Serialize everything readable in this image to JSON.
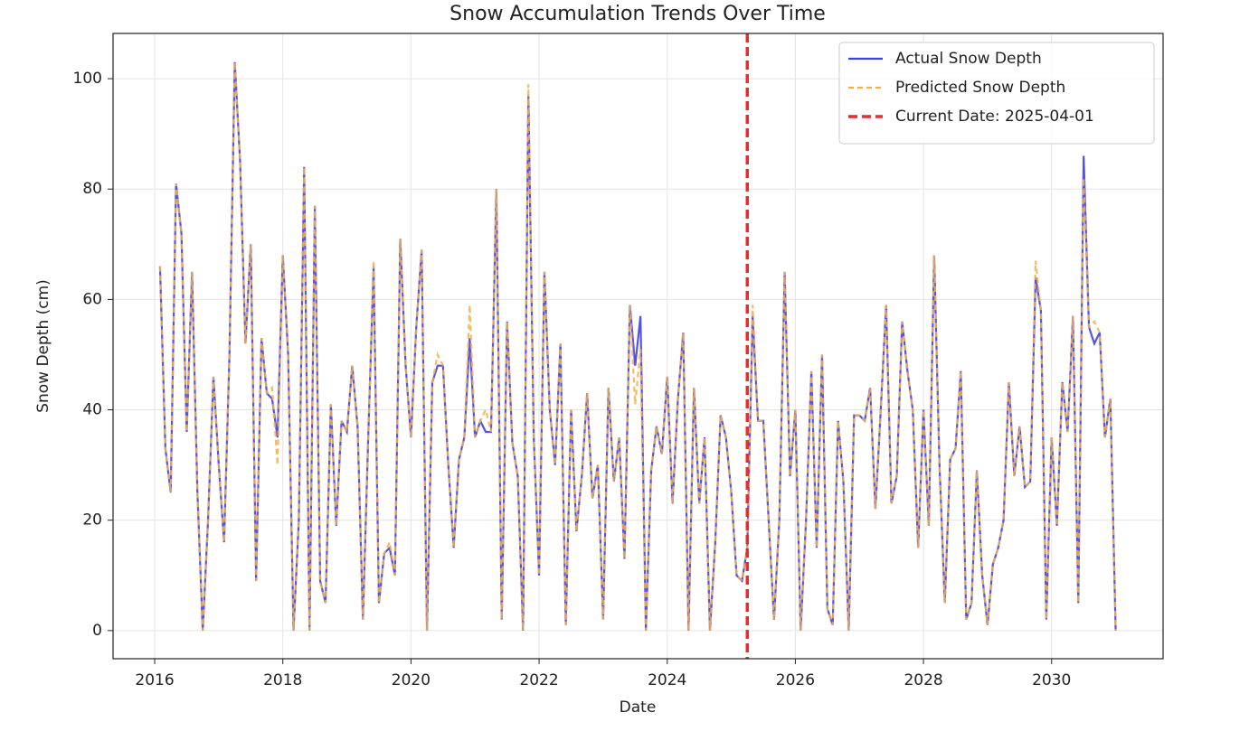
{
  "chart_data": {
    "type": "line",
    "title": "Snow Accumulation Trends Over Time",
    "x_label": "Date",
    "y_label": "Snow Depth (cm)",
    "x": [
      2016.083,
      2016.167,
      2016.25,
      2016.333,
      2016.417,
      2016.5,
      2016.583,
      2016.667,
      2016.75,
      2016.833,
      2016.917,
      2017,
      2017.083,
      2017.167,
      2017.25,
      2017.333,
      2017.417,
      2017.5,
      2017.583,
      2017.667,
      2017.75,
      2017.833,
      2017.917,
      2018,
      2018.083,
      2018.167,
      2018.25,
      2018.333,
      2018.417,
      2018.5,
      2018.583,
      2018.667,
      2018.75,
      2018.833,
      2018.917,
      2019,
      2019.083,
      2019.167,
      2019.25,
      2019.333,
      2019.417,
      2019.5,
      2019.583,
      2019.667,
      2019.75,
      2019.833,
      2019.917,
      2020,
      2020.083,
      2020.167,
      2020.25,
      2020.333,
      2020.417,
      2020.5,
      2020.583,
      2020.667,
      2020.75,
      2020.833,
      2020.917,
      2021,
      2021.083,
      2021.167,
      2021.25,
      2021.333,
      2021.417,
      2021.5,
      2021.583,
      2021.667,
      2021.75,
      2021.833,
      2021.917,
      2022,
      2022.083,
      2022.167,
      2022.25,
      2022.333,
      2022.417,
      2022.5,
      2022.583,
      2022.667,
      2022.75,
      2022.833,
      2022.917,
      2023,
      2023.083,
      2023.167,
      2023.25,
      2023.333,
      2023.417,
      2023.5,
      2023.583,
      2023.667,
      2023.75,
      2023.833,
      2023.917,
      2024,
      2024.083,
      2024.167,
      2024.25,
      2024.333,
      2024.417,
      2024.5,
      2024.583,
      2024.667,
      2024.75,
      2024.833,
      2024.917,
      2025,
      2025.083,
      2025.167,
      2025.25,
      2025.333,
      2025.417,
      2025.5,
      2025.583,
      2025.667,
      2025.75,
      2025.833,
      2025.917,
      2026,
      2026.083,
      2026.167,
      2026.25,
      2026.333,
      2026.417,
      2026.5,
      2026.583,
      2026.667,
      2026.75,
      2026.833,
      2026.917,
      2027,
      2027.083,
      2027.167,
      2027.25,
      2027.333,
      2027.417,
      2027.5,
      2027.583,
      2027.667,
      2027.75,
      2027.833,
      2027.917,
      2028,
      2028.083,
      2028.167,
      2028.25,
      2028.333,
      2028.417,
      2028.5,
      2028.583,
      2028.667,
      2028.75,
      2028.833,
      2028.917,
      2029,
      2029.083,
      2029.167,
      2029.25,
      2029.333,
      2029.417,
      2029.5,
      2029.583,
      2029.667,
      2029.75,
      2029.833,
      2029.917,
      2030,
      2030.083,
      2030.167,
      2030.25,
      2030.333,
      2030.417,
      2030.5,
      2030.583,
      2030.667,
      2030.75,
      2030.833,
      2030.917,
      2031
    ],
    "series": [
      {
        "name": "Actual Snow Depth",
        "color": "#4040e8",
        "dash": false,
        "values": [
          66,
          33,
          25,
          81,
          72,
          36,
          65,
          25,
          0,
          20,
          46,
          30,
          16,
          50,
          103,
          85,
          52,
          70,
          9,
          53,
          43,
          42,
          35,
          68,
          50,
          0,
          20,
          84,
          0,
          77,
          9,
          5,
          41,
          19,
          38,
          36,
          48,
          37,
          2,
          35,
          66,
          5,
          14,
          15,
          10,
          71,
          48,
          35,
          55,
          69,
          0,
          45,
          48,
          48,
          30,
          15,
          31,
          35,
          53,
          35,
          38,
          36,
          36,
          80,
          2,
          56,
          34,
          28,
          0,
          97,
          35,
          10,
          65,
          40,
          30,
          52,
          1,
          40,
          18,
          28,
          43,
          24,
          30,
          2,
          44,
          27,
          35,
          13,
          59,
          48,
          57,
          0,
          29,
          37,
          32,
          46,
          23,
          42,
          54,
          0,
          44,
          23,
          35,
          0,
          16,
          39,
          35,
          25,
          10,
          9,
          15,
          57,
          38,
          38,
          20,
          2,
          20,
          65,
          28,
          40,
          0,
          20,
          47,
          15,
          50,
          4,
          1,
          38,
          27,
          0,
          39,
          39,
          38,
          44,
          22,
          40,
          59,
          23,
          28,
          56,
          47,
          40,
          15,
          40,
          19,
          68,
          30,
          5,
          31,
          33,
          47,
          2,
          5,
          29,
          10,
          1,
          12,
          15,
          20,
          45,
          28,
          37,
          26,
          27,
          64,
          58,
          2,
          35,
          19,
          45,
          36,
          57,
          5,
          86,
          55,
          52,
          54,
          35,
          42,
          0
        ]
      },
      {
        "name": "Predicted Snow Depth",
        "color": "#f5b04a",
        "dash": true,
        "values": [
          66,
          33,
          25,
          81,
          72,
          36,
          65,
          25,
          0,
          20,
          46,
          30,
          16,
          50,
          103,
          85,
          52,
          70,
          9,
          53,
          43,
          44,
          30,
          68,
          50,
          0,
          20,
          84,
          0,
          77,
          9,
          5,
          41,
          19,
          38,
          36,
          48,
          37,
          2,
          35,
          67,
          5,
          14,
          16,
          10,
          71,
          48,
          35,
          55,
          69,
          0,
          45,
          50,
          48,
          30,
          15,
          31,
          35,
          59,
          35,
          38,
          40,
          36,
          80,
          2,
          56,
          34,
          28,
          0,
          99,
          35,
          10,
          65,
          40,
          30,
          52,
          1,
          40,
          18,
          28,
          43,
          24,
          30,
          2,
          44,
          27,
          35,
          13,
          59,
          41,
          51,
          0,
          29,
          37,
          32,
          46,
          23,
          42,
          54,
          0,
          44,
          23,
          35,
          0,
          16,
          39,
          35,
          25,
          10,
          9,
          15,
          59,
          38,
          38,
          20,
          2,
          20,
          65,
          28,
          40,
          0,
          20,
          47,
          15,
          50,
          4,
          1,
          38,
          27,
          0,
          39,
          39,
          38,
          44,
          22,
          40,
          59,
          23,
          28,
          56,
          47,
          40,
          15,
          40,
          19,
          68,
          30,
          5,
          31,
          33,
          47,
          2,
          5,
          29,
          10,
          1,
          12,
          15,
          20,
          45,
          28,
          37,
          26,
          27,
          67,
          58,
          2,
          35,
          19,
          45,
          36,
          57,
          5,
          82,
          55,
          56,
          54,
          35,
          42,
          0
        ]
      }
    ],
    "vline": {
      "x": 2025.25,
      "label": "Current Date: 2025-04-01",
      "color": "#e03030"
    },
    "xlim": [
      2015.35,
      2031.74
    ],
    "ylim": [
      -5.1,
      108.2
    ],
    "xticks": [
      2016,
      2018,
      2020,
      2022,
      2024,
      2026,
      2028,
      2030
    ],
    "yticks": [
      0,
      20,
      40,
      60,
      80,
      100
    ],
    "grid": true,
    "legend": "upper right"
  }
}
